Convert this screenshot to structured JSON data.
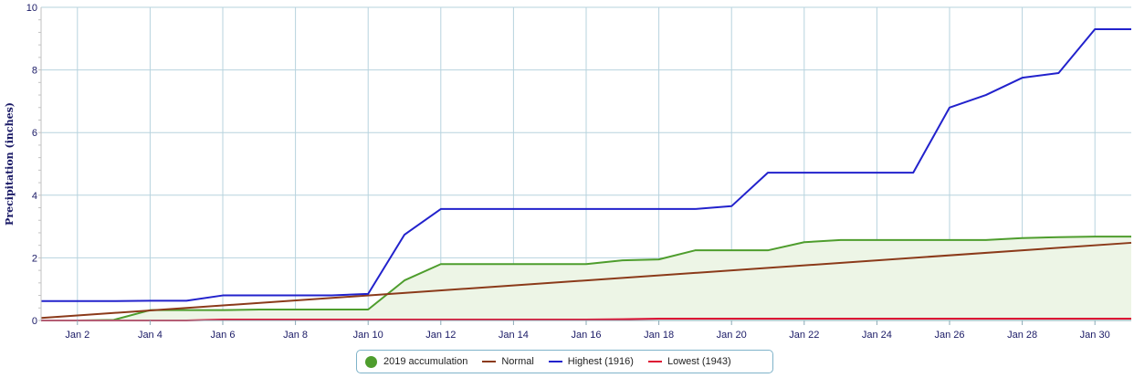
{
  "chart_data": {
    "type": "line",
    "title": "",
    "xlabel": "",
    "ylabel": "Precipitation (inches)",
    "xlim": [
      1,
      31
    ],
    "ylim": [
      0,
      10
    ],
    "y_ticks": [
      "0",
      "2",
      "4",
      "6",
      "8",
      "10"
    ],
    "x_ticks": [
      {
        "day": 2,
        "label": "Jan 2"
      },
      {
        "day": 4,
        "label": "Jan 4"
      },
      {
        "day": 6,
        "label": "Jan 6"
      },
      {
        "day": 8,
        "label": "Jan 8"
      },
      {
        "day": 10,
        "label": "Jan 10"
      },
      {
        "day": 12,
        "label": "Jan 12"
      },
      {
        "day": 14,
        "label": "Jan 14"
      },
      {
        "day": 16,
        "label": "Jan 16"
      },
      {
        "day": 18,
        "label": "Jan 18"
      },
      {
        "day": 20,
        "label": "Jan 20"
      },
      {
        "day": 22,
        "label": "Jan 22"
      },
      {
        "day": 24,
        "label": "Jan 24"
      },
      {
        "day": 26,
        "label": "Jan 26"
      },
      {
        "day": 28,
        "label": "Jan 28"
      },
      {
        "day": 30,
        "label": "Jan 30"
      }
    ],
    "grid": true,
    "legend_position": "bottom-center",
    "series": [
      {
        "name": "2019 accumulation",
        "style": "area",
        "color": "#4e9d2d",
        "fill": "#edf5e6",
        "x": [
          1,
          2,
          3,
          4,
          5,
          6,
          7,
          8,
          9,
          10,
          11,
          12,
          13,
          14,
          15,
          16,
          17,
          18,
          19,
          20,
          21,
          22,
          23,
          24,
          25,
          26,
          27,
          28,
          29,
          30,
          31
        ],
        "values": [
          0.0,
          0.0,
          0.02,
          0.33,
          0.33,
          0.33,
          0.35,
          0.35,
          0.35,
          0.35,
          1.28,
          1.8,
          1.8,
          1.8,
          1.8,
          1.8,
          1.92,
          1.95,
          2.24,
          2.24,
          2.24,
          2.5,
          2.57,
          2.57,
          2.57,
          2.57,
          2.57,
          2.63,
          2.66,
          2.68,
          2.68
        ]
      },
      {
        "name": "Normal",
        "style": "line",
        "color": "#8b3a1a",
        "x": [
          1,
          31
        ],
        "values": [
          0.08,
          2.48
        ]
      },
      {
        "name": "Highest (1916)",
        "style": "line",
        "color": "#2222cc",
        "x": [
          1,
          2,
          3,
          4,
          5,
          6,
          7,
          8,
          9,
          10,
          11,
          12,
          13,
          14,
          15,
          16,
          17,
          18,
          19,
          20,
          21,
          22,
          23,
          24,
          25,
          26,
          27,
          28,
          29,
          30,
          31
        ],
        "values": [
          0.62,
          0.62,
          0.62,
          0.63,
          0.63,
          0.8,
          0.8,
          0.8,
          0.8,
          0.85,
          2.74,
          3.56,
          3.56,
          3.56,
          3.56,
          3.56,
          3.56,
          3.56,
          3.56,
          3.65,
          4.72,
          4.72,
          4.72,
          4.72,
          4.72,
          6.8,
          7.2,
          7.75,
          7.9,
          9.3,
          9.3
        ]
      },
      {
        "name": "Lowest (1943)",
        "style": "line",
        "color": "#dd1133",
        "x": [
          1,
          2,
          3,
          4,
          5,
          6,
          7,
          8,
          9,
          10,
          11,
          12,
          13,
          14,
          15,
          16,
          17,
          18,
          19,
          20,
          21,
          22,
          23,
          24,
          25,
          26,
          27,
          28,
          29,
          30,
          31
        ],
        "values": [
          0.0,
          0.0,
          0.0,
          0.0,
          0.0,
          0.03,
          0.03,
          0.03,
          0.03,
          0.03,
          0.03,
          0.03,
          0.03,
          0.03,
          0.03,
          0.03,
          0.04,
          0.06,
          0.06,
          0.06,
          0.06,
          0.06,
          0.06,
          0.06,
          0.06,
          0.06,
          0.06,
          0.06,
          0.06,
          0.06,
          0.06
        ]
      }
    ]
  },
  "legend": {
    "items": [
      {
        "label": "2019 accumulation",
        "color": "#4e9d2d",
        "marker": "dot"
      },
      {
        "label": "Normal",
        "color": "#8b3a1a",
        "marker": "line"
      },
      {
        "label": "Highest (1916)",
        "color": "#2222cc",
        "marker": "line"
      },
      {
        "label": "Lowest (1943)",
        "color": "#dd1133",
        "marker": "line"
      }
    ]
  }
}
